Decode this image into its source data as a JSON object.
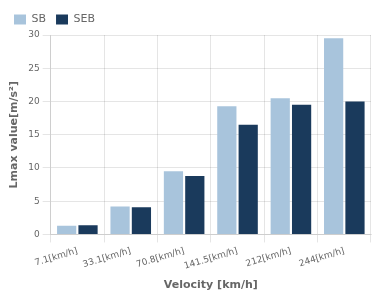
{
  "chart_data": {
    "type": "bar",
    "categories": [
      "7.1[km/h]",
      "33.1[km/h]",
      "70.8[km/h]",
      "141.5[km/h]",
      "212[km/h]",
      "244[km/h]"
    ],
    "series": [
      {
        "name": "SB",
        "color": "#a8c4dc",
        "values": [
          1.3,
          4.2,
          9.5,
          19.3,
          20.5,
          29.5
        ]
      },
      {
        "name": "SEB",
        "color": "#1a3a5c",
        "values": [
          1.4,
          4.1,
          8.8,
          16.5,
          19.5,
          20.0
        ]
      }
    ],
    "xlabel": "Velocity [km/h]",
    "ylabel": "Lmax value[m/s²]",
    "ylim": [
      0,
      30
    ],
    "yticks": [
      0,
      5,
      10,
      15,
      20,
      25,
      30
    ],
    "grid": true,
    "legend": "upper left"
  }
}
